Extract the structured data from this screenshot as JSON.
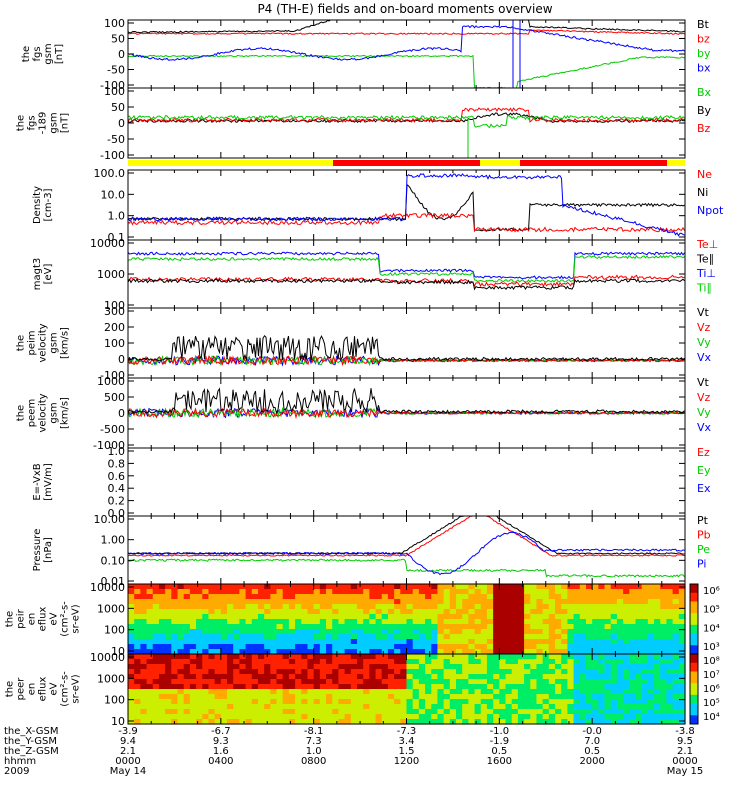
{
  "title": "P4 (TH-E) fields and on-board moments overview",
  "chart_data": {
    "type": "line",
    "x_ticks": [
      "0000",
      "0400",
      "0800",
      "1200",
      "1600",
      "2000",
      "0000"
    ],
    "panels": [
      {
        "id": "fgs",
        "ylabel": [
          "the",
          "fgs",
          "gsm",
          "[nT]"
        ],
        "yticks": [
          "100",
          "50",
          "0",
          "-50",
          "-100"
        ],
        "ylim": [
          -100,
          100
        ],
        "legend": [
          {
            "label": "Bt",
            "color": "#000000"
          },
          {
            "label": "bz",
            "color": "#ff0000"
          },
          {
            "label": "by",
            "color": "#00cc00"
          },
          {
            "label": "bx",
            "color": "#0000ff"
          }
        ]
      },
      {
        "id": "fgs_lat",
        "ylabel": [
          "the",
          "fgs",
          "-189",
          "gsm",
          "[nT]"
        ],
        "yticks": [
          "100",
          "50",
          "0",
          "-50",
          "-100"
        ],
        "ylim": [
          -125,
          100
        ],
        "legend": [
          {
            "label": "Bx",
            "color": "#00cc00"
          },
          {
            "label": "By",
            "color": "#000000"
          },
          {
            "label": "Bz",
            "color": "#ff0000"
          }
        ]
      },
      {
        "id": "density",
        "ylabel": [
          "Density",
          "[cm-3]"
        ],
        "yticks": [
          "100.0",
          "10.0",
          "1.0",
          "0.1"
        ],
        "log": true,
        "legend": [
          {
            "label": "Ne",
            "color": "#ff0000"
          },
          {
            "label": "Ni",
            "color": "#000000"
          },
          {
            "label": "Npot",
            "color": "#0000ff"
          }
        ]
      },
      {
        "id": "temp",
        "ylabel": [
          "magt3",
          "[eV]"
        ],
        "yticks": [
          "10000",
          "1000",
          "100"
        ],
        "log": true,
        "legend": [
          {
            "label": "Te⊥",
            "color": "#ff0000"
          },
          {
            "label": "Te∥",
            "color": "#000000"
          },
          {
            "label": "Ti⊥",
            "color": "#0000ff"
          },
          {
            "label": "Ti∥",
            "color": "#00cc00"
          }
        ]
      },
      {
        "id": "vi",
        "ylabel": [
          "the",
          "peim",
          "velocity",
          "gsm",
          "[km/s]"
        ],
        "yticks": [
          "300",
          "200",
          "100",
          "0",
          "-100"
        ],
        "ylim": [
          -100,
          300
        ],
        "legend": [
          {
            "label": "Vt",
            "color": "#000000"
          },
          {
            "label": "Vz",
            "color": "#ff0000"
          },
          {
            "label": "Vy",
            "color": "#00cc00"
          },
          {
            "label": "Vx",
            "color": "#0000ff"
          }
        ]
      },
      {
        "id": "ve",
        "ylabel": [
          "the",
          "peem",
          "velocity",
          "gsm",
          "[km/s]"
        ],
        "yticks": [
          "1000",
          "500",
          "0",
          "-500",
          "-1000"
        ],
        "ylim": [
          -1000,
          1000
        ],
        "legend": [
          {
            "label": "Vt",
            "color": "#000000"
          },
          {
            "label": "Vz",
            "color": "#ff0000"
          },
          {
            "label": "Vy",
            "color": "#00cc00"
          },
          {
            "label": "Vx",
            "color": "#0000ff"
          }
        ]
      },
      {
        "id": "efield",
        "ylabel": [
          "E=-VxB",
          "[mV/m]"
        ],
        "yticks": [
          "1.0",
          "0.8",
          "0.6",
          "0.4",
          "0.2",
          "0.0"
        ],
        "ylim": [
          0,
          1
        ],
        "legend": [
          {
            "label": "Ez",
            "color": "#ff0000"
          },
          {
            "label": "Ey",
            "color": "#00cc00"
          },
          {
            "label": "Ex",
            "color": "#0000ff"
          }
        ]
      },
      {
        "id": "pressure",
        "ylabel": [
          "Pressure",
          "[nPa]"
        ],
        "yticks": [
          "10.00",
          "1.00",
          "0.10",
          "0.01"
        ],
        "log": true,
        "legend": [
          {
            "label": "Pt",
            "color": "#000000"
          },
          {
            "label": "Pb",
            "color": "#ff0000"
          },
          {
            "label": "Pe",
            "color": "#00cc00"
          },
          {
            "label": "Pi",
            "color": "#0000ff"
          }
        ]
      },
      {
        "id": "ion_spec",
        "type": "heatmap",
        "ylabel": [
          "the",
          "peir",
          "en",
          "eflux",
          "eV",
          "(cm²-s-",
          "sr-eV)"
        ],
        "yticks": [
          "10000",
          "1000",
          "100",
          "10"
        ],
        "colorbar": [
          "10⁶",
          "10⁵",
          "10⁴",
          "10³"
        ]
      },
      {
        "id": "ele_spec",
        "type": "heatmap",
        "ylabel": [
          "the",
          "peer",
          "en",
          "eflux",
          "eV",
          "(cm²-s-",
          "sr-eV)"
        ],
        "yticks": [
          "10000",
          "1000",
          "100",
          "10"
        ],
        "colorbar": [
          "10⁸",
          "10⁷",
          "10⁶",
          "10⁵",
          "10⁴"
        ]
      }
    ],
    "ephemeris": {
      "rows": [
        {
          "label": "the_X-GSM",
          "values": [
            "-3.9",
            "-6.7",
            "-8.1",
            "-7.3",
            "-1.0",
            "-0.0",
            "-3.8"
          ]
        },
        {
          "label": "the_Y-GSM",
          "values": [
            "9.4",
            "9.3",
            "7.3",
            "3.4",
            "-1.9",
            "7.0",
            "9.5"
          ]
        },
        {
          "label": "the_Z-GSM",
          "values": [
            "2.1",
            "1.6",
            "1.0",
            "1.5",
            "0.5",
            "0.5",
            "2.1"
          ]
        },
        {
          "label": "hhmm",
          "values": [
            "0000",
            "0400",
            "0800",
            "1200",
            "1600",
            "2000",
            "0000"
          ]
        },
        {
          "label": "2009",
          "values": [
            "May 14",
            "",
            "",
            "",
            "",
            "",
            "May 15"
          ]
        }
      ]
    }
  }
}
